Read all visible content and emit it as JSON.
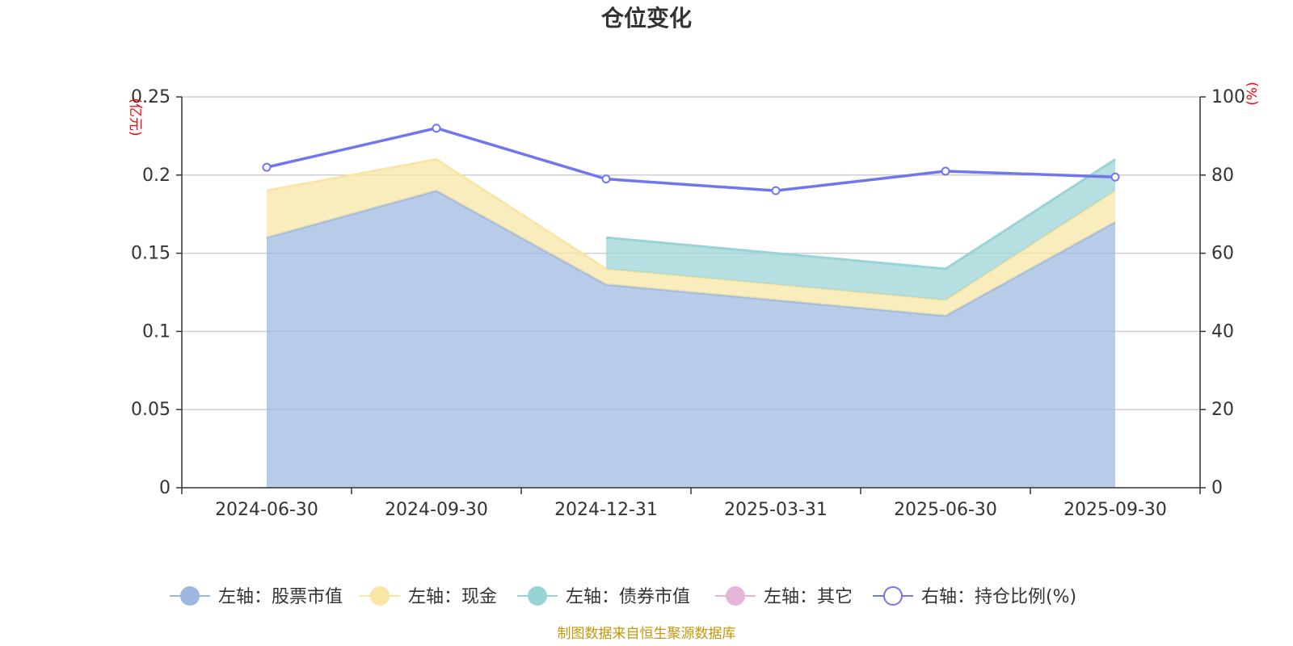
{
  "chart_data": {
    "type": "area",
    "title": "仓位变化",
    "categories": [
      "2024-06-30",
      "2024-09-30",
      "2024-12-31",
      "2025-03-31",
      "2025-06-30",
      "2025-09-30"
    ],
    "left_axis": {
      "unit": "(亿元)",
      "ylim": [
        0,
        0.25
      ],
      "ticks": [
        "0",
        "0.05",
        "0.1",
        "0.15",
        "0.2",
        "0.25"
      ]
    },
    "right_axis": {
      "unit": "(%)",
      "ylim": [
        0,
        100
      ],
      "ticks": [
        "0",
        "20",
        "40",
        "60",
        "80",
        "100"
      ]
    },
    "stacked_series": [
      {
        "name": "左轴：股票市值",
        "color": "#9db7e0",
        "values": [
          0.16,
          0.19,
          0.13,
          0.12,
          0.11,
          0.17
        ]
      },
      {
        "name": "左轴：现金",
        "color": "#f7e6a5",
        "values": [
          0.03,
          0.02,
          0.01,
          0.01,
          0.01,
          0.02
        ]
      },
      {
        "name": "左轴：债券市值",
        "color": "#98d3d6",
        "values": [
          0.0,
          0.0,
          0.02,
          0.02,
          0.02,
          0.02
        ]
      },
      {
        "name": "左轴：其它",
        "color": "#e6b6d8",
        "values": [
          0.0,
          0.0,
          0.0,
          0.01,
          0.0,
          0.01
        ]
      }
    ],
    "line_series": {
      "name": "右轴：持仓比例(%)",
      "color": "#7176ef",
      "axis": "right",
      "values": [
        82.0,
        92.0,
        79.0,
        76.0,
        81.0,
        79.5
      ]
    },
    "grid": true,
    "legend_position": "bottom"
  },
  "footer": {
    "source": "制图数据来自恒生聚源数据库"
  }
}
